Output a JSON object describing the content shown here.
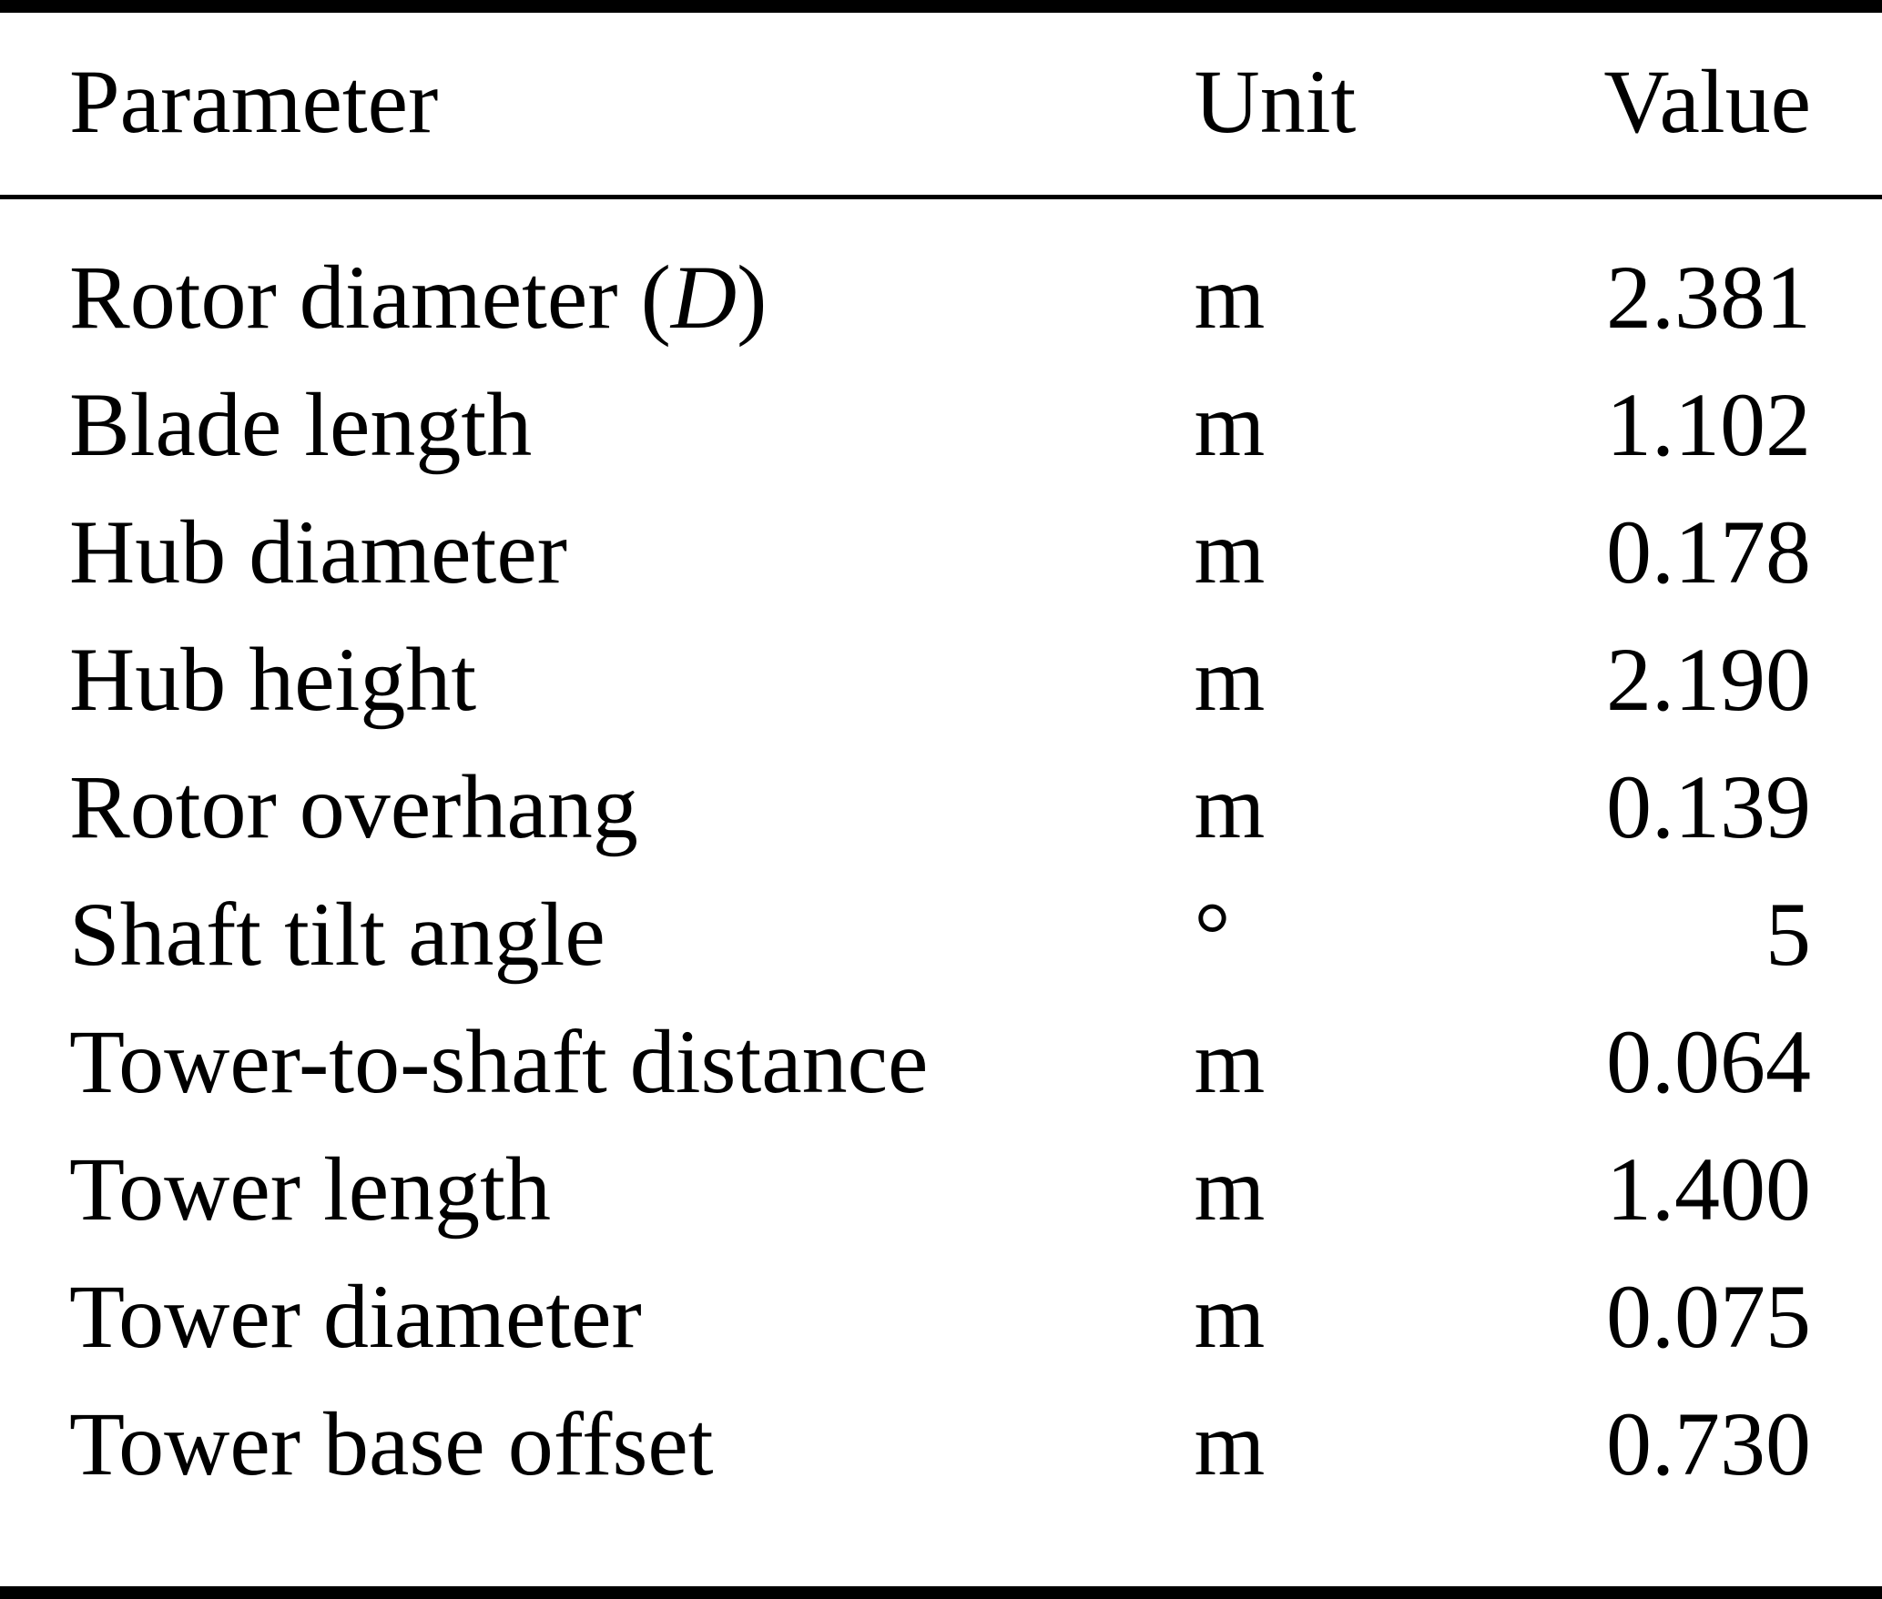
{
  "table": {
    "headers": {
      "parameter": "Parameter",
      "unit": "Unit",
      "value": "Value"
    },
    "rows": [
      {
        "parameter_segments": [
          {
            "text": "Rotor diameter (",
            "italic": false
          },
          {
            "text": "D",
            "italic": true
          },
          {
            "text": ")",
            "italic": false
          }
        ],
        "unit": "m",
        "value": "2.381"
      },
      {
        "parameter_segments": [
          {
            "text": "Blade length",
            "italic": false
          }
        ],
        "unit": "m",
        "value": "1.102"
      },
      {
        "parameter_segments": [
          {
            "text": "Hub diameter",
            "italic": false
          }
        ],
        "unit": "m",
        "value": "0.178"
      },
      {
        "parameter_segments": [
          {
            "text": "Hub height",
            "italic": false
          }
        ],
        "unit": "m",
        "value": "2.190"
      },
      {
        "parameter_segments": [
          {
            "text": "Rotor overhang",
            "italic": false
          }
        ],
        "unit": "m",
        "value": "0.139"
      },
      {
        "parameter_segments": [
          {
            "text": "Shaft tilt angle",
            "italic": false
          }
        ],
        "unit": "°",
        "value": "5"
      },
      {
        "parameter_segments": [
          {
            "text": "Tower-to-shaft distance",
            "italic": false
          }
        ],
        "unit": "m",
        "value": "0.064"
      },
      {
        "parameter_segments": [
          {
            "text": "Tower length",
            "italic": false
          }
        ],
        "unit": "m",
        "value": "1.400"
      },
      {
        "parameter_segments": [
          {
            "text": "Tower diameter",
            "italic": false
          }
        ],
        "unit": "m",
        "value": "0.075"
      },
      {
        "parameter_segments": [
          {
            "text": "Tower base offset",
            "italic": false
          }
        ],
        "unit": "m",
        "value": "0.730"
      }
    ]
  },
  "colors": {
    "text": "#000000",
    "background": "#ffffff",
    "rule": "#000000"
  }
}
